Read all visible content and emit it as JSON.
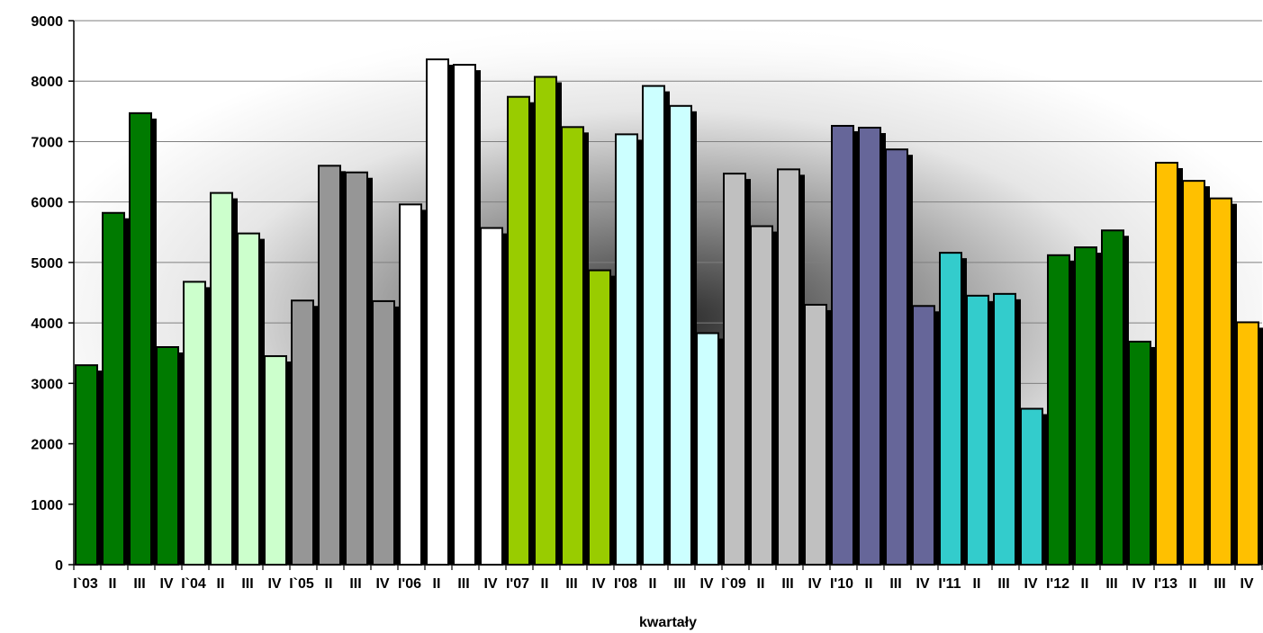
{
  "chart_data": {
    "type": "bar",
    "title": "",
    "xlabel": "kwartały",
    "ylabel": "",
    "ylim": [
      0,
      9000
    ],
    "yticks": [
      0,
      1000,
      2000,
      3000,
      4000,
      5000,
      6000,
      7000,
      8000,
      9000
    ],
    "grid": true,
    "legend": "none",
    "categories": [
      "I`03",
      "II",
      "III",
      "IV",
      "I`04",
      "II",
      "III",
      "IV",
      "I`05",
      "II",
      "III",
      "IV",
      "I'06",
      "II",
      "III",
      "IV",
      "I'07",
      "II",
      "III",
      "IV",
      "I'08",
      "II",
      "III",
      "IV",
      "I`09",
      "II",
      "III",
      "IV",
      "I'10",
      "II",
      "III",
      "IV",
      "I'11",
      "II",
      "III",
      "IV",
      "I'12",
      "II",
      "III",
      "IV",
      "I'13",
      "II",
      "III",
      "IV"
    ],
    "values": [
      3300,
      5820,
      7470,
      3600,
      4680,
      6150,
      5480,
      3450,
      4370,
      6600,
      6490,
      4360,
      5960,
      8360,
      8270,
      5570,
      7740,
      8070,
      7240,
      4870,
      7120,
      7920,
      7590,
      3830,
      6470,
      5600,
      6540,
      4300,
      7260,
      7230,
      6870,
      4280,
      5160,
      4450,
      4480,
      2580,
      5120,
      5250,
      5530,
      3690,
      6650,
      6350,
      6060,
      4010
    ],
    "year_colors": [
      "#007a00",
      "#ccffcc",
      "#969696",
      "#ffffff",
      "#99cc00",
      "#ccffff",
      "#c0c0c0",
      "#666699",
      "#33cccc",
      "#007a00",
      "#ffc000"
    ]
  }
}
